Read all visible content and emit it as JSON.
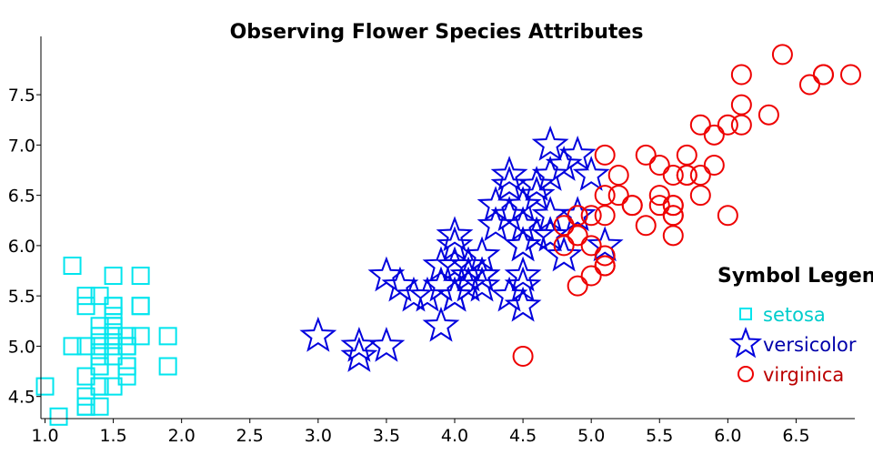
{
  "chart_data": {
    "type": "scatter",
    "title": "Observing Flower Species Attributes",
    "xlabel": "",
    "ylabel": "",
    "xlim": [
      0.97,
      6.93
    ],
    "ylim": [
      4.28,
      8.08
    ],
    "xticks": [
      "1.0",
      "1.5",
      "2.0",
      "2.5",
      "3.0",
      "3.5",
      "4.0",
      "4.5",
      "5.0",
      "5.5",
      "6.0",
      "6.5"
    ],
    "yticks": [
      "4.5",
      "5.0",
      "5.5",
      "6.0",
      "6.5",
      "7.0",
      "7.5"
    ],
    "grid": false,
    "legend": {
      "title": "Symbol Legen",
      "placement": "right"
    },
    "series": [
      {
        "name": "setosa",
        "marker": "square",
        "color": "#00e5ee",
        "text_color": "#00cccc",
        "points": [
          [
            1.4,
            5.1
          ],
          [
            1.4,
            4.9
          ],
          [
            1.3,
            4.7
          ],
          [
            1.5,
            4.6
          ],
          [
            1.4,
            5.0
          ],
          [
            1.7,
            5.4
          ],
          [
            1.4,
            4.6
          ],
          [
            1.5,
            5.0
          ],
          [
            1.4,
            4.4
          ],
          [
            1.5,
            4.9
          ],
          [
            1.5,
            5.4
          ],
          [
            1.6,
            4.8
          ],
          [
            1.4,
            4.8
          ],
          [
            1.1,
            4.3
          ],
          [
            1.2,
            5.8
          ],
          [
            1.5,
            5.7
          ],
          [
            1.3,
            5.4
          ],
          [
            1.4,
            5.1
          ],
          [
            1.7,
            5.7
          ],
          [
            1.5,
            5.1
          ],
          [
            1.7,
            5.4
          ],
          [
            1.5,
            5.1
          ],
          [
            1.0,
            4.6
          ],
          [
            1.7,
            5.1
          ],
          [
            1.9,
            4.8
          ],
          [
            1.6,
            5.0
          ],
          [
            1.6,
            5.0
          ],
          [
            1.5,
            5.2
          ],
          [
            1.4,
            5.2
          ],
          [
            1.6,
            4.7
          ],
          [
            1.6,
            4.8
          ],
          [
            1.5,
            5.4
          ],
          [
            1.5,
            5.2
          ],
          [
            1.4,
            5.5
          ],
          [
            1.5,
            4.9
          ],
          [
            1.2,
            5.0
          ],
          [
            1.3,
            5.5
          ],
          [
            1.4,
            4.9
          ],
          [
            1.3,
            4.4
          ],
          [
            1.5,
            5.1
          ],
          [
            1.3,
            5.0
          ],
          [
            1.3,
            4.5
          ],
          [
            1.3,
            4.4
          ],
          [
            1.6,
            5.0
          ],
          [
            1.9,
            5.1
          ],
          [
            1.4,
            4.8
          ],
          [
            1.6,
            5.1
          ],
          [
            1.4,
            4.6
          ],
          [
            1.5,
            5.3
          ],
          [
            1.4,
            5.0
          ]
        ]
      },
      {
        "name": "versicolor",
        "marker": "star",
        "color": "#0000dd",
        "text_color": "#0000aa",
        "points": [
          [
            4.7,
            7.0
          ],
          [
            4.5,
            6.4
          ],
          [
            4.9,
            6.9
          ],
          [
            4.0,
            5.5
          ],
          [
            4.6,
            6.5
          ],
          [
            4.5,
            5.7
          ],
          [
            4.7,
            6.3
          ],
          [
            3.3,
            4.9
          ],
          [
            4.6,
            6.6
          ],
          [
            3.9,
            5.2
          ],
          [
            3.5,
            5.0
          ],
          [
            4.2,
            5.9
          ],
          [
            4.0,
            6.0
          ],
          [
            4.7,
            6.1
          ],
          [
            3.6,
            5.6
          ],
          [
            4.4,
            6.7
          ],
          [
            4.5,
            5.6
          ],
          [
            4.1,
            5.8
          ],
          [
            4.5,
            6.2
          ],
          [
            3.9,
            5.6
          ],
          [
            4.8,
            5.9
          ],
          [
            4.0,
            6.1
          ],
          [
            4.9,
            6.3
          ],
          [
            4.7,
            6.1
          ],
          [
            4.3,
            6.4
          ],
          [
            4.4,
            6.6
          ],
          [
            4.8,
            6.8
          ],
          [
            5.0,
            6.7
          ],
          [
            4.5,
            6.0
          ],
          [
            3.5,
            5.7
          ],
          [
            3.8,
            5.5
          ],
          [
            3.7,
            5.5
          ],
          [
            3.9,
            5.8
          ],
          [
            5.1,
            6.0
          ],
          [
            4.5,
            5.4
          ],
          [
            4.5,
            6.0
          ],
          [
            4.7,
            6.7
          ],
          [
            4.4,
            6.3
          ],
          [
            4.1,
            5.6
          ],
          [
            4.0,
            5.5
          ],
          [
            4.4,
            5.5
          ],
          [
            4.6,
            6.1
          ],
          [
            4.0,
            5.8
          ],
          [
            3.3,
            5.0
          ],
          [
            4.2,
            5.6
          ],
          [
            4.2,
            5.7
          ],
          [
            4.2,
            5.7
          ],
          [
            4.3,
            6.2
          ],
          [
            3.0,
            5.1
          ],
          [
            4.1,
            5.7
          ]
        ]
      },
      {
        "name": "virginica",
        "marker": "circle",
        "color": "#ee0000",
        "text_color": "#bb0000",
        "points": [
          [
            6.0,
            6.3
          ],
          [
            5.1,
            5.8
          ],
          [
            5.9,
            7.1
          ],
          [
            5.6,
            6.3
          ],
          [
            5.8,
            6.5
          ],
          [
            6.6,
            7.6
          ],
          [
            4.5,
            4.9
          ],
          [
            6.3,
            7.3
          ],
          [
            5.8,
            6.7
          ],
          [
            6.1,
            7.2
          ],
          [
            5.1,
            6.5
          ],
          [
            5.3,
            6.4
          ],
          [
            5.5,
            6.8
          ],
          [
            5.0,
            5.7
          ],
          [
            5.1,
            5.8
          ],
          [
            5.3,
            6.4
          ],
          [
            5.5,
            6.5
          ],
          [
            6.7,
            7.7
          ],
          [
            6.9,
            7.7
          ],
          [
            5.0,
            6.0
          ],
          [
            5.7,
            6.9
          ],
          [
            4.9,
            5.6
          ],
          [
            6.7,
            7.7
          ],
          [
            4.9,
            6.3
          ],
          [
            5.7,
            6.7
          ],
          [
            6.0,
            7.2
          ],
          [
            4.8,
            6.2
          ],
          [
            4.9,
            6.1
          ],
          [
            5.6,
            6.4
          ],
          [
            5.8,
            7.2
          ],
          [
            6.1,
            7.4
          ],
          [
            6.4,
            7.9
          ],
          [
            5.6,
            6.4
          ],
          [
            5.1,
            6.3
          ],
          [
            5.6,
            6.1
          ],
          [
            6.1,
            7.7
          ],
          [
            5.6,
            6.3
          ],
          [
            5.5,
            6.4
          ],
          [
            4.8,
            6.0
          ],
          [
            5.4,
            6.9
          ],
          [
            5.6,
            6.7
          ],
          [
            5.1,
            6.9
          ],
          [
            5.1,
            5.8
          ],
          [
            5.9,
            6.8
          ],
          [
            5.7,
            6.7
          ],
          [
            5.2,
            6.7
          ],
          [
            5.0,
            6.3
          ],
          [
            5.2,
            6.5
          ],
          [
            5.4,
            6.2
          ],
          [
            5.1,
            5.9
          ]
        ]
      }
    ]
  }
}
